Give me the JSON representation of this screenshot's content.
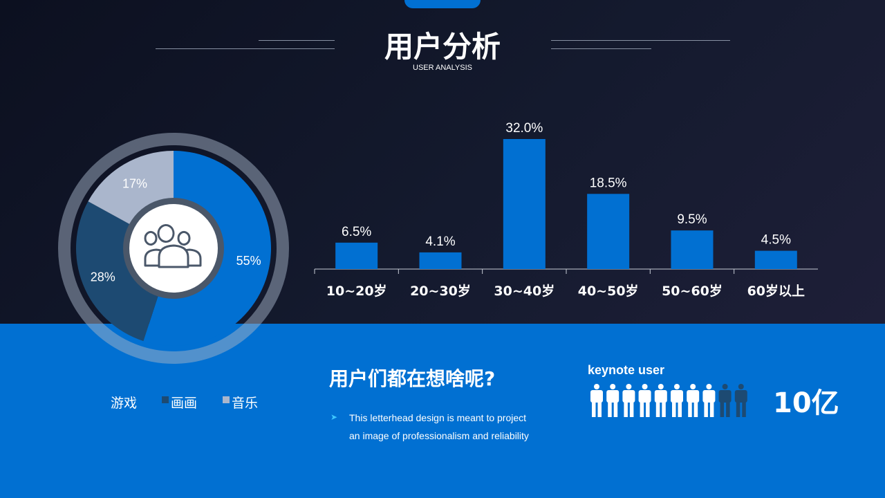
{
  "header": {
    "title": "用户分析",
    "subtitle": "USER ANALYSIS"
  },
  "colors": {
    "accent": "#0170d2",
    "dark_blue": "#1d4a72",
    "gray": "#aab6cc",
    "ring": "#5a6a7e"
  },
  "icons": {
    "donut_center": "users-icon",
    "people": "person-icon",
    "bullet": "arrow-bullet-icon"
  },
  "chart_data": [
    {
      "type": "pie",
      "variant": "donut",
      "slices": [
        {
          "label": "游戏",
          "value": 55,
          "display": "55%",
          "color": "#0170d2"
        },
        {
          "label": "画画",
          "value": 28,
          "display": "28%",
          "color": "#1d4a72"
        },
        {
          "label": "音乐",
          "value": 17,
          "display": "17%",
          "color": "#aab6cc"
        }
      ],
      "legend_placement": "bottom"
    },
    {
      "type": "bar",
      "categories": [
        "10~20岁",
        "20~30岁",
        "30~40岁",
        "40~50岁",
        "50~60岁",
        "60岁以上"
      ],
      "values": [
        6.5,
        4.1,
        32.0,
        18.5,
        9.5,
        4.5
      ],
      "labels": [
        "6.5%",
        "4.1%",
        "32.0%",
        "18.5%",
        "9.5%",
        "4.5%"
      ],
      "ylim": [
        0,
        32.0
      ],
      "grid": false
    }
  ],
  "legend": [
    "游戏",
    "画画",
    "音乐"
  ],
  "question": {
    "title": "用户们都在想啥呢?",
    "text_line1": "This letterhead design is meant to project",
    "text_line2": "an image of professionalism and reliability"
  },
  "keynote": {
    "label": "keynote user",
    "value": "10亿",
    "filled": 8,
    "total": 10
  }
}
